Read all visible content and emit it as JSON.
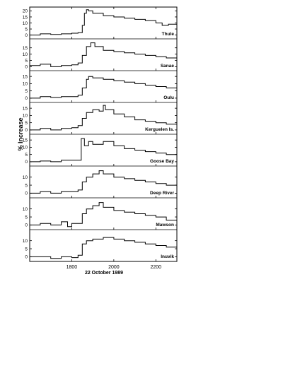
{
  "chart_data": {
    "type": "line",
    "style": "step",
    "xlabel": "22 October 1989",
    "ylabel": "% Increase",
    "xlim": [
      1600,
      2300
    ],
    "xticks": [
      1800,
      2000,
      2200
    ],
    "xtick_labels": [
      "1800",
      "2000",
      "2200"
    ],
    "color": "#000000",
    "series": [
      {
        "name": "Thule",
        "ylim": [
          -2,
          22
        ],
        "yticks": [
          0,
          5,
          10,
          15,
          20
        ],
        "ytick_labels": [
          "0",
          "5",
          "10",
          "15",
          "20"
        ],
        "x": [
          1600,
          1650,
          1700,
          1750,
          1800,
          1830,
          1850,
          1860,
          1870,
          1880,
          1900,
          1950,
          2000,
          2050,
          2100,
          2150,
          2200,
          2230,
          2260,
          2300
        ],
        "y": [
          0,
          1,
          0.5,
          1,
          1.5,
          2,
          8,
          18,
          21,
          20,
          18,
          16,
          15,
          14,
          13,
          12,
          10,
          8,
          9,
          9
        ]
      },
      {
        "name": "Sanae",
        "ylim": [
          -2,
          21
        ],
        "yticks": [
          0,
          5,
          10,
          15
        ],
        "ytick_labels": [
          "0",
          "5",
          "10",
          "15"
        ],
        "x": [
          1600,
          1650,
          1700,
          1750,
          1800,
          1830,
          1850,
          1870,
          1890,
          1910,
          1950,
          2000,
          2050,
          2100,
          2150,
          2200,
          2250,
          2300
        ],
        "y": [
          1,
          2,
          0,
          1,
          1.5,
          3,
          9,
          16,
          19,
          16,
          13,
          12,
          11,
          10,
          9,
          8,
          7,
          6
        ]
      },
      {
        "name": "Oulu",
        "ylim": [
          -2,
          18
        ],
        "yticks": [
          0,
          5,
          10,
          15
        ],
        "ytick_labels": [
          "0",
          "5",
          "10",
          "15"
        ],
        "x": [
          1600,
          1650,
          1700,
          1750,
          1800,
          1830,
          1850,
          1870,
          1880,
          1900,
          1950,
          2000,
          2050,
          2100,
          2150,
          2200,
          2250,
          2300
        ],
        "y": [
          0,
          1,
          0.5,
          1,
          1,
          2,
          7,
          13,
          15,
          14,
          13,
          12,
          11,
          10,
          9,
          8,
          7,
          5
        ]
      },
      {
        "name": "Kerguelen Is.",
        "ylim": [
          -2,
          18
        ],
        "yticks": [
          0,
          5,
          10,
          15
        ],
        "ytick_labels": [
          "0",
          "5",
          "10",
          "15"
        ],
        "x": [
          1600,
          1650,
          1700,
          1750,
          1800,
          1830,
          1850,
          1870,
          1900,
          1930,
          1950,
          1960,
          2000,
          2050,
          2100,
          2150,
          2200,
          2250,
          2300
        ],
        "y": [
          0,
          1,
          0,
          1,
          1.5,
          3,
          8,
          12,
          14,
          13,
          17,
          14,
          11,
          9,
          7,
          6,
          5,
          4,
          3
        ]
      },
      {
        "name": "Goose Bay",
        "ylim": [
          -2,
          18
        ],
        "yticks": [
          0,
          5,
          10,
          15
        ],
        "ytick_labels": [
          "0",
          "5",
          "10",
          "15"
        ],
        "x": [
          1600,
          1650,
          1700,
          1750,
          1800,
          1830,
          1845,
          1860,
          1880,
          1900,
          1950,
          2000,
          2050,
          2100,
          2150,
          2200,
          2250,
          2300
        ],
        "y": [
          0,
          0.5,
          0,
          1,
          1,
          1,
          16,
          11,
          14,
          12,
          14,
          11,
          9,
          8,
          7,
          6,
          5,
          4
        ]
      },
      {
        "name": "Deep River",
        "ylim": [
          -2,
          16
        ],
        "yticks": [
          0,
          5,
          10
        ],
        "ytick_labels": [
          "0",
          "5",
          "10"
        ],
        "x": [
          1600,
          1650,
          1700,
          1750,
          1800,
          1830,
          1850,
          1870,
          1900,
          1930,
          1950,
          2000,
          2050,
          2100,
          2150,
          2200,
          2250,
          2300
        ],
        "y": [
          0,
          1,
          0,
          1,
          1,
          2,
          7,
          10,
          12,
          14,
          12,
          10,
          9,
          8,
          7,
          6,
          5,
          4
        ]
      },
      {
        "name": "Mawson",
        "ylim": [
          -2,
          16
        ],
        "yticks": [
          0,
          5,
          10
        ],
        "ytick_labels": [
          "0",
          "5",
          "10"
        ],
        "x": [
          1600,
          1650,
          1700,
          1750,
          1780,
          1800,
          1830,
          1850,
          1870,
          1900,
          1930,
          1950,
          2000,
          2050,
          2100,
          2150,
          2200,
          2250,
          2300
        ],
        "y": [
          0,
          1,
          0,
          2,
          -1,
          1,
          1,
          7,
          10,
          12,
          14,
          11,
          9,
          8,
          7,
          6,
          5,
          3,
          1
        ]
      },
      {
        "name": "Inuvik",
        "ylim": [
          -2,
          16
        ],
        "yticks": [
          0,
          5,
          10
        ],
        "ytick_labels": [
          "0",
          "5",
          "10"
        ],
        "x": [
          1600,
          1650,
          1700,
          1750,
          1800,
          1830,
          1850,
          1870,
          1900,
          1950,
          1980,
          2000,
          2050,
          2100,
          2150,
          2200,
          2250,
          2300
        ],
        "y": [
          0,
          0,
          -1,
          0,
          -0.5,
          1,
          8,
          10,
          11,
          12,
          12,
          11,
          10,
          9,
          8,
          7,
          6,
          5
        ]
      }
    ]
  }
}
